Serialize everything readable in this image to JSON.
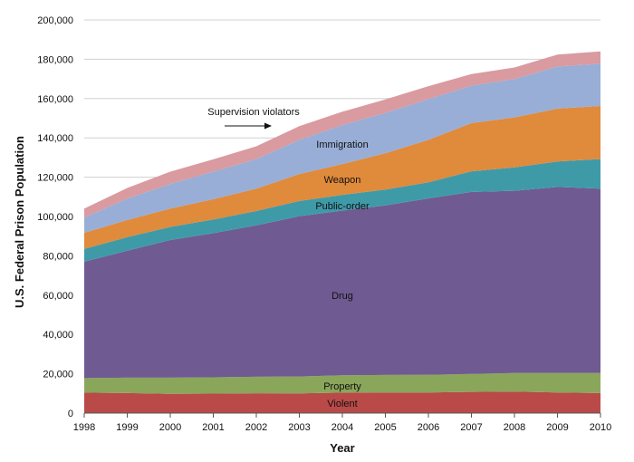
{
  "chart_data": {
    "type": "area",
    "stacked": true,
    "title": "",
    "xlabel": "Year",
    "ylabel": "U.S. Federal Prison Population",
    "ylim": [
      0,
      200000
    ],
    "yticks": [
      0,
      20000,
      40000,
      60000,
      80000,
      100000,
      120000,
      140000,
      160000,
      180000,
      200000
    ],
    "ytick_labels": [
      "0",
      "20,000",
      "40,000",
      "60,000",
      "80,000",
      "100,000",
      "120,000",
      "140,000",
      "160,000",
      "180,000",
      "200,000"
    ],
    "x": [
      "1998",
      "1999",
      "2000",
      "2001",
      "2002",
      "2003",
      "2004",
      "2005",
      "2006",
      "2007",
      "2008",
      "2009",
      "2010"
    ],
    "grid": true,
    "series": [
      {
        "name": "Violent",
        "color": "#b94a48",
        "values": [
          10400,
          10200,
          9800,
          9900,
          10100,
          10000,
          10400,
          10500,
          10500,
          10800,
          10900,
          10500,
          10200
        ]
      },
      {
        "name": "Property",
        "color": "#8aa65a",
        "values": [
          7400,
          7800,
          8200,
          8300,
          8400,
          8600,
          8800,
          8900,
          9000,
          9100,
          9500,
          9900,
          10200
        ]
      },
      {
        "name": "Drug",
        "color": "#6f5a92",
        "values": [
          59200,
          64600,
          70000,
          73300,
          77000,
          81600,
          83800,
          86200,
          89700,
          92600,
          92700,
          94600,
          93800
        ]
      },
      {
        "name": "Public-order",
        "color": "#3f9aa8",
        "values": [
          6500,
          6900,
          6700,
          7000,
          7300,
          7700,
          8000,
          8100,
          8200,
          10500,
          11900,
          13000,
          15000
        ]
      },
      {
        "name": "Weapon",
        "color": "#e08a3c",
        "values": [
          8200,
          8700,
          9300,
          10300,
          11400,
          13700,
          15700,
          18500,
          21600,
          24500,
          25400,
          26900,
          27000
        ]
      },
      {
        "name": "Immigration",
        "color": "#98aed6",
        "values": [
          7800,
          10900,
          12600,
          14000,
          15000,
          17400,
          19800,
          20500,
          20700,
          19100,
          19500,
          21400,
          21500
        ]
      },
      {
        "name": "Supervision violators",
        "color": "#d99aa0",
        "values": [
          4500,
          5400,
          6200,
          6300,
          6500,
          7000,
          6800,
          6900,
          6600,
          5900,
          5900,
          6100,
          6300
        ]
      }
    ],
    "annotations": {
      "supervision_label": "Supervision violators",
      "immigration_label": "Immigration",
      "weapon_label": "Weapon",
      "public_order_label": "Public-order",
      "drug_label": "Drug",
      "property_label": "Property",
      "violent_label": "Violent"
    }
  }
}
